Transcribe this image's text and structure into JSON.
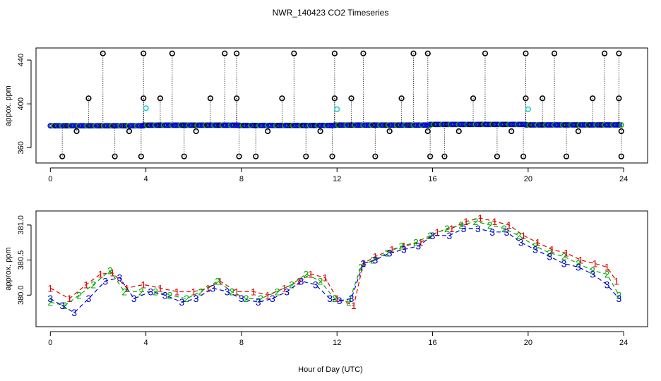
{
  "title": "NWR_140423  CO2 Timeseries",
  "xlabel": "Hour of Day (UTC)",
  "chart_data": [
    {
      "type": "scatter",
      "name": "top-panel",
      "ylabel": "appox. ppm",
      "xlim": [
        -0.6,
        25.0
      ],
      "ylim": [
        346,
        451
      ],
      "xticks": [
        0,
        4,
        8,
        12,
        16,
        20,
        24
      ],
      "yticks": [
        360,
        400,
        440
      ],
      "baseline_segments": [
        {
          "x0": 0.0,
          "x1": 3.9,
          "y0": 380.0,
          "y1": 380.0
        },
        {
          "x0": 3.9,
          "x1": 7.9,
          "y0": 380.5,
          "y1": 380.5
        },
        {
          "x0": 7.9,
          "x1": 11.9,
          "y0": 380.3,
          "y1": 380.3
        },
        {
          "x0": 11.9,
          "x1": 15.9,
          "y0": 380.6,
          "y1": 380.6
        },
        {
          "x0": 15.9,
          "x1": 19.9,
          "y0": 381.2,
          "y1": 381.2
        },
        {
          "x0": 19.9,
          "x1": 23.9,
          "y0": 380.8,
          "y1": 380.8
        }
      ],
      "outliers": [
        {
          "x": 0.5,
          "y": 352
        },
        {
          "x": 1.1,
          "y": 375
        },
        {
          "x": 1.6,
          "y": 405
        },
        {
          "x": 2.2,
          "y": 446
        },
        {
          "x": 2.7,
          "y": 352
        },
        {
          "x": 3.3,
          "y": 375
        },
        {
          "x": 3.8,
          "y": 352
        },
        {
          "x": 3.9,
          "y": 405
        },
        {
          "x": 3.9,
          "y": 446
        },
        {
          "x": 4.6,
          "y": 405
        },
        {
          "x": 5.1,
          "y": 446
        },
        {
          "x": 5.6,
          "y": 352
        },
        {
          "x": 6.1,
          "y": 375
        },
        {
          "x": 6.7,
          "y": 405
        },
        {
          "x": 7.3,
          "y": 446
        },
        {
          "x": 7.8,
          "y": 405
        },
        {
          "x": 7.8,
          "y": 446
        },
        {
          "x": 7.9,
          "y": 352
        },
        {
          "x": 8.6,
          "y": 352
        },
        {
          "x": 9.1,
          "y": 375
        },
        {
          "x": 9.7,
          "y": 405
        },
        {
          "x": 10.2,
          "y": 446
        },
        {
          "x": 10.7,
          "y": 352
        },
        {
          "x": 11.3,
          "y": 375
        },
        {
          "x": 11.8,
          "y": 352
        },
        {
          "x": 11.9,
          "y": 405
        },
        {
          "x": 11.9,
          "y": 446
        },
        {
          "x": 12.6,
          "y": 405
        },
        {
          "x": 13.1,
          "y": 446
        },
        {
          "x": 13.6,
          "y": 352
        },
        {
          "x": 14.2,
          "y": 375
        },
        {
          "x": 14.7,
          "y": 405
        },
        {
          "x": 15.2,
          "y": 446
        },
        {
          "x": 15.8,
          "y": 446
        },
        {
          "x": 15.8,
          "y": 375
        },
        {
          "x": 15.9,
          "y": 352
        },
        {
          "x": 16.5,
          "y": 352
        },
        {
          "x": 17.1,
          "y": 375
        },
        {
          "x": 17.7,
          "y": 405
        },
        {
          "x": 18.2,
          "y": 446
        },
        {
          "x": 18.7,
          "y": 352
        },
        {
          "x": 19.3,
          "y": 375
        },
        {
          "x": 19.8,
          "y": 352
        },
        {
          "x": 19.9,
          "y": 405
        },
        {
          "x": 19.9,
          "y": 446
        },
        {
          "x": 20.6,
          "y": 405
        },
        {
          "x": 21.1,
          "y": 446
        },
        {
          "x": 21.6,
          "y": 352
        },
        {
          "x": 22.1,
          "y": 375
        },
        {
          "x": 22.7,
          "y": 405
        },
        {
          "x": 23.2,
          "y": 446
        },
        {
          "x": 23.8,
          "y": 405
        },
        {
          "x": 23.8,
          "y": 446
        },
        {
          "x": 23.9,
          "y": 375
        },
        {
          "x": 23.9,
          "y": 352
        }
      ],
      "cyan_points": [
        {
          "x": 4.0,
          "y": 396
        },
        {
          "x": 12.0,
          "y": 395
        },
        {
          "x": 20.0,
          "y": 395
        }
      ]
    },
    {
      "type": "line",
      "name": "bottom-panel",
      "ylabel": "approx. ppm",
      "xlim": [
        -0.6,
        25.0
      ],
      "ylim": [
        379.55,
        381.2
      ],
      "xticks": [
        0,
        4,
        8,
        12,
        16,
        20,
        24
      ],
      "yticks": [
        380.0,
        380.5,
        381.0
      ],
      "series": [
        {
          "name": "1",
          "color": "#dd0000",
          "x": [
            0.0,
            0.8,
            1.5,
            2.1,
            2.6,
            3.2,
            3.9,
            4.6,
            5.3,
            6.0,
            6.6,
            7.1,
            7.8,
            8.5,
            9.1,
            9.8,
            10.4,
            10.9,
            11.5,
            12.0,
            12.7,
            13.1,
            13.6,
            14.3,
            14.8,
            15.5,
            16.2,
            16.8,
            17.4,
            18.0,
            18.6,
            19.2,
            19.8,
            20.4,
            21.0,
            21.6,
            22.2,
            22.8,
            23.3,
            23.7
          ],
          "values": [
            380.1,
            379.95,
            380.15,
            380.3,
            380.32,
            380.1,
            380.15,
            380.1,
            380.05,
            380.05,
            380.1,
            380.2,
            380.05,
            380.05,
            380.0,
            380.1,
            380.2,
            380.3,
            380.25,
            379.95,
            379.85,
            380.45,
            380.55,
            380.65,
            380.7,
            380.75,
            380.9,
            380.95,
            381.05,
            381.1,
            381.05,
            381.0,
            380.85,
            380.75,
            380.65,
            380.6,
            380.5,
            380.45,
            380.4,
            380.2
          ]
        },
        {
          "name": "2",
          "color": "#00aa00",
          "x": [
            0.0,
            0.6,
            1.2,
            1.8,
            2.5,
            3.1,
            3.8,
            4.4,
            5.0,
            5.7,
            6.3,
            7.0,
            7.6,
            8.2,
            8.8,
            9.5,
            10.1,
            10.7,
            11.3,
            11.9,
            12.5,
            13.0,
            13.5,
            14.1,
            14.7,
            15.3,
            15.9,
            16.6,
            17.2,
            17.8,
            18.4,
            19.0,
            19.6,
            20.3,
            20.9,
            21.5,
            22.1,
            22.7,
            23.3,
            23.8
          ],
          "values": [
            379.9,
            379.85,
            380.0,
            380.15,
            380.35,
            380.05,
            380.05,
            380.05,
            380.0,
            379.95,
            380.05,
            380.2,
            380.05,
            379.95,
            379.95,
            380.05,
            380.15,
            380.3,
            380.2,
            379.95,
            379.9,
            380.4,
            380.5,
            380.6,
            380.7,
            380.75,
            380.85,
            380.95,
            381.0,
            381.05,
            381.0,
            380.95,
            380.85,
            380.7,
            380.6,
            380.55,
            380.45,
            380.35,
            380.3,
            380.0
          ]
        },
        {
          "name": "3",
          "color": "#0000cc",
          "x": [
            0.0,
            0.5,
            1.0,
            1.6,
            2.3,
            2.9,
            3.5,
            4.2,
            4.8,
            5.5,
            6.1,
            6.8,
            7.4,
            8.0,
            8.7,
            9.3,
            9.9,
            10.5,
            11.1,
            11.7,
            12.1,
            12.6,
            13.1,
            13.6,
            14.2,
            14.8,
            15.4,
            16.0,
            16.7,
            17.3,
            17.9,
            18.5,
            19.1,
            19.7,
            20.3,
            20.9,
            21.5,
            22.1,
            22.7,
            23.3,
            23.8
          ],
          "values": [
            379.95,
            379.85,
            379.75,
            379.95,
            380.2,
            380.25,
            379.95,
            380.05,
            380.0,
            379.9,
            379.95,
            380.1,
            380.05,
            379.95,
            379.9,
            379.95,
            380.05,
            380.2,
            380.15,
            379.95,
            379.92,
            379.95,
            380.45,
            380.5,
            380.6,
            380.65,
            380.7,
            380.85,
            380.85,
            380.95,
            380.95,
            380.9,
            380.9,
            380.75,
            380.65,
            380.55,
            380.45,
            380.4,
            380.3,
            380.15,
            379.95
          ]
        }
      ]
    }
  ]
}
